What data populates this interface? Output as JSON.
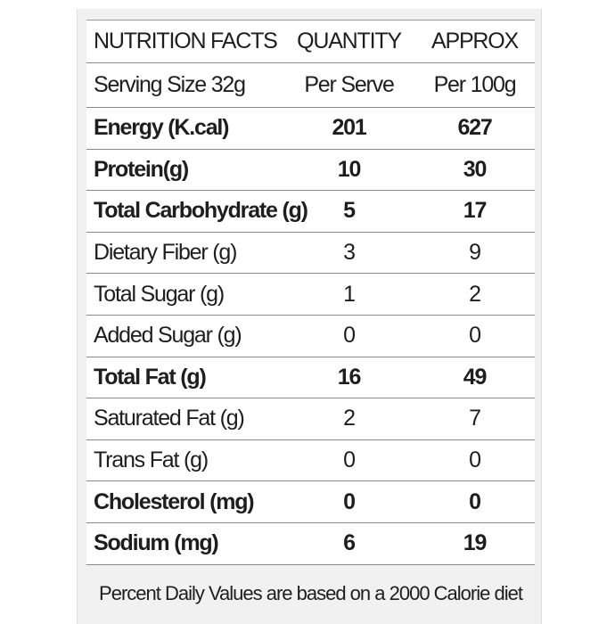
{
  "table": {
    "header": [
      "NUTRITION FACTS",
      "QUANTITY",
      "APPROX"
    ],
    "rows": [
      {
        "cells": [
          "Serving Size 32g",
          "Per Serve",
          "Per 100g"
        ],
        "bold": false
      },
      {
        "cells": [
          "Energy (K.cal)",
          "201",
          "627"
        ],
        "bold": true
      },
      {
        "cells": [
          "Protein(g)",
          "10",
          "30"
        ],
        "bold": true
      },
      {
        "cells": [
          "Total Carbohydrate (g)",
          "5",
          "17"
        ],
        "bold": true
      },
      {
        "cells": [
          "Dietary Fiber (g)",
          "3",
          "9"
        ],
        "bold": false
      },
      {
        "cells": [
          "Total Sugar (g)",
          "1",
          "2"
        ],
        "bold": false
      },
      {
        "cells": [
          "Added Sugar (g)",
          "0",
          "0"
        ],
        "bold": false
      },
      {
        "cells": [
          "Total Fat (g)",
          "16",
          "49"
        ],
        "bold": true
      },
      {
        "cells": [
          "Saturated Fat (g)",
          "2",
          "7"
        ],
        "bold": false
      },
      {
        "cells": [
          "Trans Fat  (g)",
          "0",
          "0"
        ],
        "bold": false
      },
      {
        "cells": [
          "Cholesterol (mg)",
          "0",
          "0"
        ],
        "bold": true
      },
      {
        "cells": [
          "Sodium (mg)",
          "6",
          "19"
        ],
        "bold": true
      }
    ],
    "footnote": "Percent Daily Values are based on a 2000 Calorie diet"
  }
}
